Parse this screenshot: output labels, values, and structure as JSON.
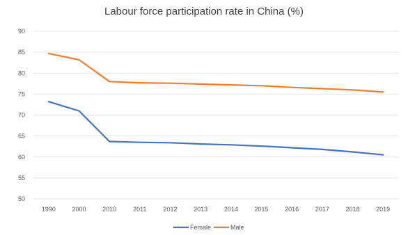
{
  "chart_data": {
    "type": "line",
    "title": "Labour force participation rate in China (%)",
    "xlabel": "",
    "ylabel": "",
    "categories": [
      "1990",
      "2000",
      "2010",
      "2011",
      "2012",
      "2013",
      "2014",
      "2015",
      "2016",
      "2017",
      "2018",
      "2019"
    ],
    "ylim": [
      50,
      90
    ],
    "yticks": [
      50,
      55,
      60,
      65,
      70,
      75,
      80,
      85,
      90
    ],
    "grid": true,
    "legend_position": "bottom",
    "series": [
      {
        "name": "Female",
        "color": "#4472C4",
        "values": [
          73.2,
          71.0,
          63.7,
          63.5,
          63.4,
          63.1,
          62.9,
          62.6,
          62.2,
          61.8,
          61.2,
          60.5
        ]
      },
      {
        "name": "Male",
        "color": "#ED7D31",
        "values": [
          84.7,
          83.2,
          78.0,
          77.7,
          77.6,
          77.4,
          77.2,
          77.0,
          76.6,
          76.3,
          76.0,
          75.5
        ]
      }
    ]
  }
}
